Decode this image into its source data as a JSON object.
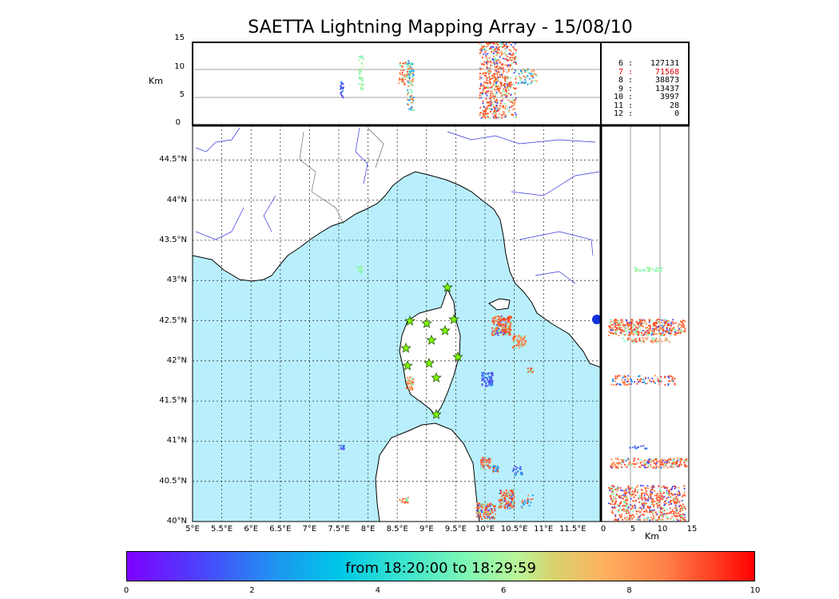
{
  "title": "SAETTA Lightning Mapping Array - 15/08/10",
  "alt_label": "Km",
  "alt_ticks": [
    "15",
    "10",
    "5",
    "0"
  ],
  "lat_ticks": [
    "44.5°N",
    "44°N",
    "43.5°N",
    "43°N",
    "42.5°N",
    "42°N",
    "41.5°N",
    "41°N",
    "40.5°N",
    "40°N"
  ],
  "lon_ticks": [
    "5°E",
    "5.5°E",
    "6°E",
    "6.5°E",
    "7°E",
    "7.5°E",
    "8°E",
    "8.5°E",
    "9°E",
    "9.5°E",
    "10°E",
    "10.5°E",
    "11°E",
    "11.5°E"
  ],
  "side_ticks": [
    "0",
    "5",
    "10",
    "15"
  ],
  "side_label": "Km",
  "counts": [
    {
      "k": "6",
      "v": "127131",
      "color": "#000000"
    },
    {
      "k": "7",
      "v": "71568",
      "color": "#e00000"
    },
    {
      "k": "8",
      "v": "38873",
      "color": "#000000"
    },
    {
      "k": "9",
      "v": "13437",
      "color": "#000000"
    },
    {
      "k": "10",
      "v": "3997",
      "color": "#000000"
    },
    {
      "k": "11",
      "v": "28",
      "color": "#000000"
    },
    {
      "k": "12",
      "v": "0",
      "color": "#000000"
    }
  ],
  "colorbar": {
    "label": "from 18:20:00 to 18:29:59",
    "ticks": [
      "0",
      "2",
      "4",
      "6",
      "8",
      "10"
    ]
  },
  "colors": {
    "sea": "#b9effc",
    "rivers": "#3333dd",
    "stations": "#7fff00",
    "early": "#5050f0",
    "mid": "#7ef7b4",
    "late": "#ff8c50",
    "latest": "#ff4a20"
  }
}
